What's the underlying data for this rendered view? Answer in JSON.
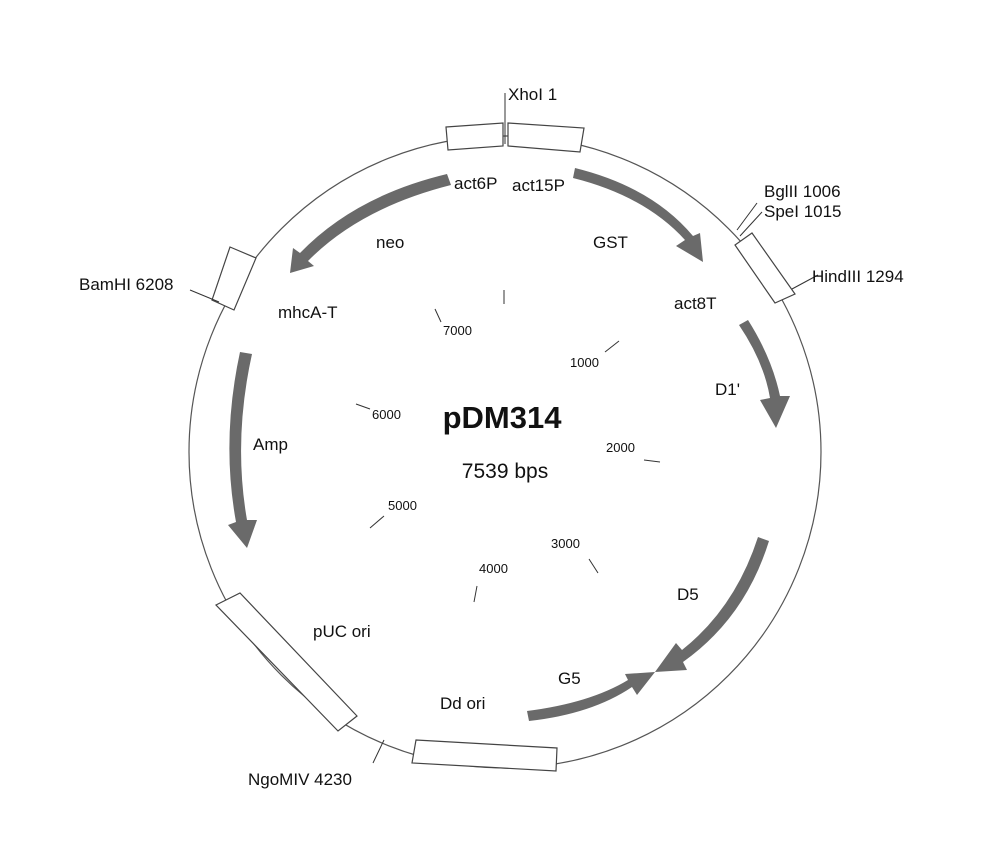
{
  "plasmid": {
    "name": "pDM314",
    "size_label": "7539 bps"
  },
  "sites": {
    "xhoi": "XhoI 1",
    "bglii": "BglII 1006",
    "spei": "SpeI 1015",
    "hindiii": "HindIII 1294",
    "bamhi": "BamHI 6208",
    "ngomiv": "NgoMIV 4230"
  },
  "features": {
    "act6p": "act6P",
    "act15p": "act15P",
    "neo": "neo",
    "gst": "GST",
    "mhca_t": "mhcA-T",
    "act8t": "act8T",
    "d1": "D1'",
    "amp": "Amp",
    "d5": "D5",
    "puc_ori": "pUC ori",
    "g5": "G5",
    "dd_ori": "Dd ori"
  },
  "ticks": [
    "1000",
    "2000",
    "3000",
    "4000",
    "5000",
    "6000",
    "7000"
  ],
  "colors": {
    "arrow": "#6a6a6a",
    "outline": "#444444"
  }
}
